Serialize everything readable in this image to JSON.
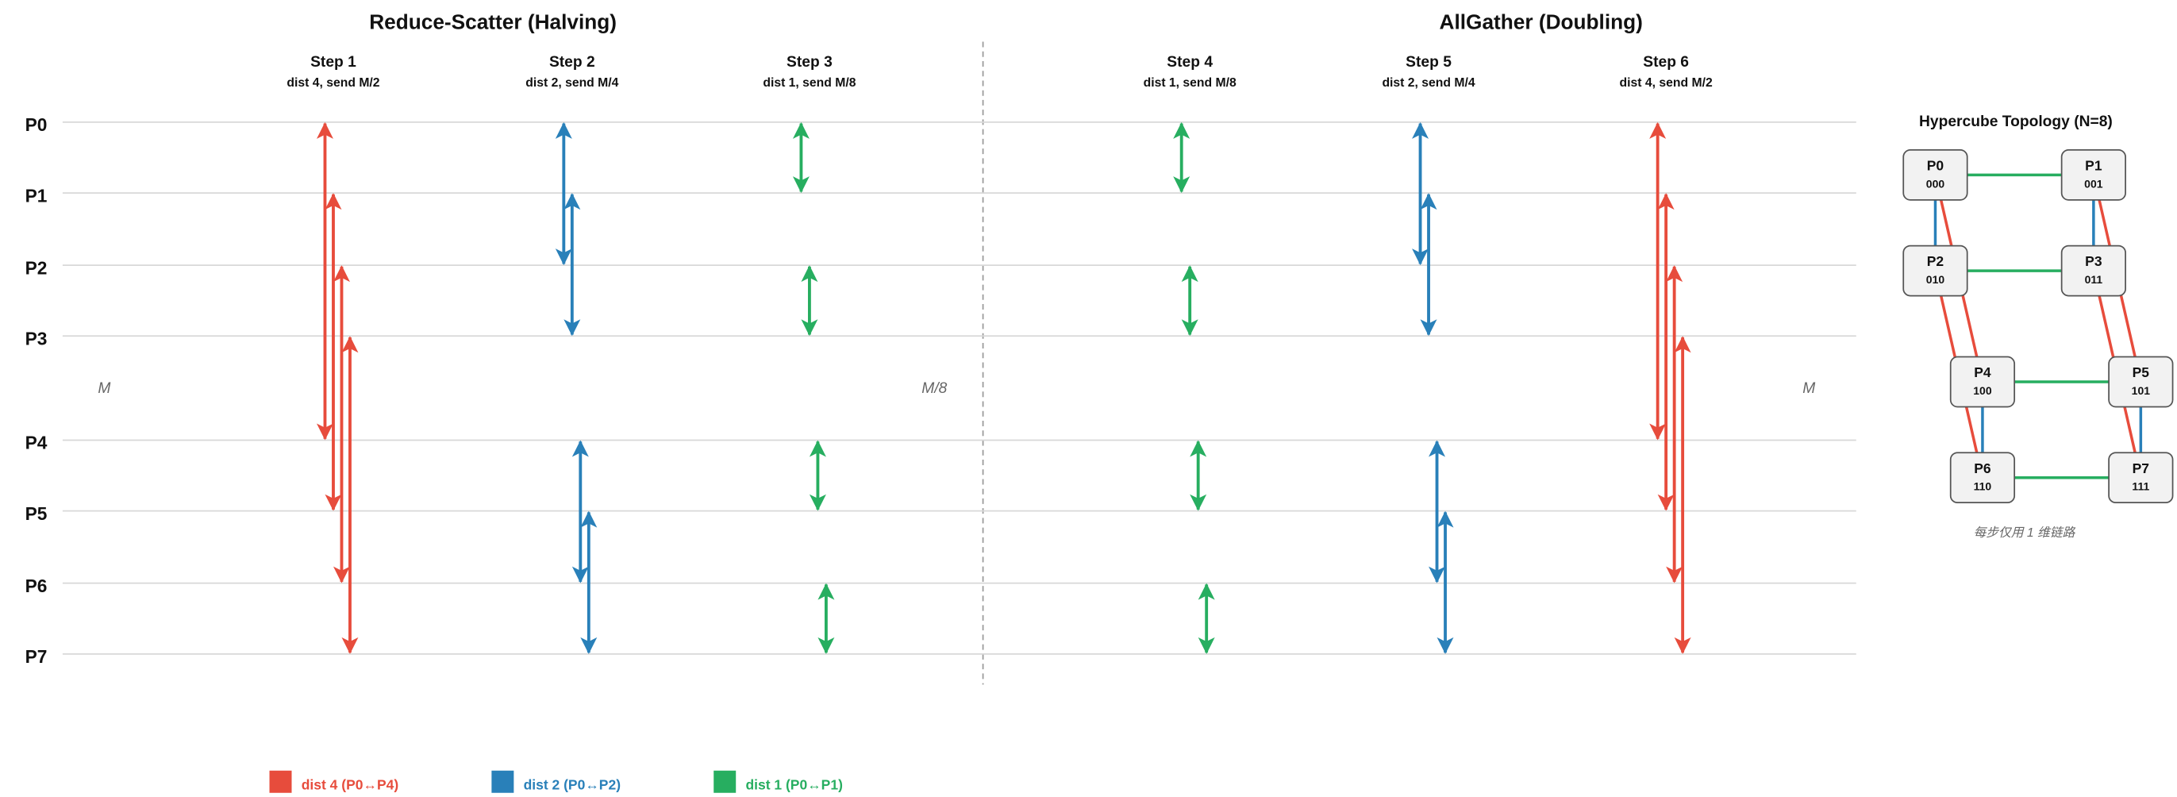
{
  "sections": [
    {
      "title": "Reduce-Scatter (Halving)"
    },
    {
      "title": "AllGather (Doubling)"
    }
  ],
  "steps": [
    {
      "label": "Step 1",
      "detail": "dist 4, send M/2"
    },
    {
      "label": "Step 2",
      "detail": "dist 2, send M/4"
    },
    {
      "label": "Step 3",
      "detail": "dist 1, send M/8"
    },
    {
      "label": "Step 4",
      "detail": "dist 1, send M/8"
    },
    {
      "label": "Step 5",
      "detail": "dist 2, send M/4"
    },
    {
      "label": "Step 6",
      "detail": "dist 4, send M/2"
    }
  ],
  "processes": [
    "P0",
    "P1",
    "P2",
    "P3",
    "P4",
    "P5",
    "P6",
    "P7"
  ],
  "size_labels": [
    "M",
    "M/8",
    "M"
  ],
  "topology": {
    "title": "Hypercube Topology (N=8)",
    "nodes": [
      {
        "label": "P0",
        "bits": "000"
      },
      {
        "label": "P1",
        "bits": "001"
      },
      {
        "label": "P2",
        "bits": "010"
      },
      {
        "label": "P3",
        "bits": "011"
      },
      {
        "label": "P4",
        "bits": "100"
      },
      {
        "label": "P5",
        "bits": "101"
      },
      {
        "label": "P6",
        "bits": "110"
      },
      {
        "label": "P7",
        "bits": "111"
      }
    ],
    "note": "每步仅用 1 维链路"
  },
  "legend": [
    {
      "label": "dist 4 (P0↔P4)",
      "color": "#e74c3c"
    },
    {
      "label": "dist 2 (P0↔P2)",
      "color": "#2980b9"
    },
    {
      "label": "dist 1 (P0↔P1)",
      "color": "#27ae60"
    }
  ]
}
